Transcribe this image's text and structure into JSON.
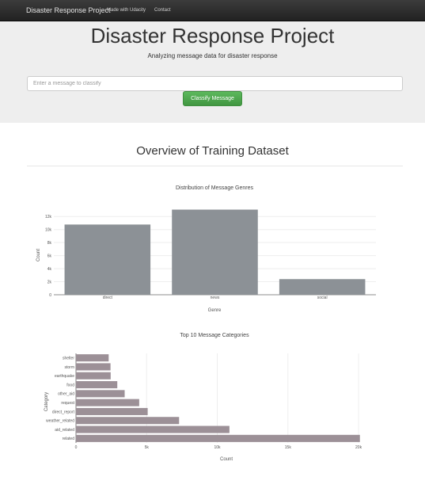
{
  "navbar": {
    "brand": "Disaster Response Project",
    "links": [
      "Made with Udacity",
      "Contact"
    ]
  },
  "header": {
    "title": "Disaster Response Project",
    "subtitle": "Analyzing message data for disaster response"
  },
  "form": {
    "placeholder": "Enter a message to classify",
    "button_label": "Classify Message"
  },
  "section": {
    "title": "Overview of Training Dataset"
  },
  "colors": {
    "genre_bar": "#8c9196",
    "category_bar": "#9c9097",
    "success": "#5cb85c"
  },
  "chart_data": [
    {
      "type": "bar",
      "title": "Distribution of Message Genres",
      "categories": [
        "direct",
        "news",
        "social"
      ],
      "values": [
        10766,
        13054,
        2396
      ],
      "xlabel": "Genre",
      "ylabel": "Count",
      "ylim": [
        0,
        13000
      ],
      "yticks": [
        0,
        2000,
        4000,
        6000,
        8000,
        10000,
        12000
      ],
      "ytick_labels": [
        "0",
        "2k",
        "4k",
        "6k",
        "8k",
        "10k",
        "12k"
      ],
      "grid": true
    },
    {
      "type": "bar",
      "orientation": "horizontal",
      "title": "Top 10 Message Categories",
      "categories": [
        "related",
        "aid_related",
        "weather_related",
        "direct_report",
        "request",
        "other_aid",
        "food",
        "earthquake",
        "storm",
        "shelter"
      ],
      "values": [
        20094,
        10860,
        7297,
        5075,
        4474,
        3446,
        2923,
        2455,
        2443,
        2314
      ],
      "xlabel": "Count",
      "ylabel": "Category",
      "xlim": [
        0,
        20500
      ],
      "xticks": [
        0,
        5000,
        10000,
        15000,
        20000
      ],
      "xtick_labels": [
        "0",
        "5k",
        "10k",
        "15k",
        "20k"
      ],
      "grid": true
    }
  ]
}
